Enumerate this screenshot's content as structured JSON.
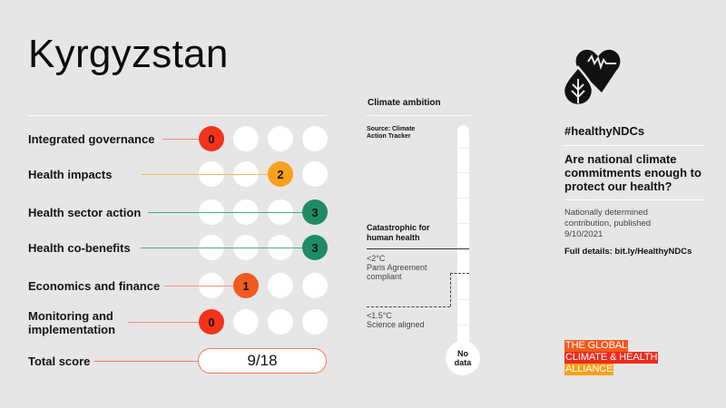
{
  "country": "Kyrgyzstan",
  "rows": [
    {
      "label": "Integrated governance",
      "score": "0",
      "position": 0,
      "color": "#f5321b",
      "line_color": "#f08a7e"
    },
    {
      "label": "Health impacts",
      "score": "2",
      "position": 2,
      "color": "#f9a11b",
      "line_color": "#f6b75c"
    },
    {
      "label": "Health sector action",
      "score": "3",
      "position": 3,
      "color": "#1e8c64",
      "line_color": "#4aa982"
    },
    {
      "label": "Health co-benefits",
      "score": "3",
      "position": 3,
      "color": "#1e8c64",
      "line_color": "#4aa982"
    },
    {
      "label": "Economics and finance",
      "score": "1",
      "position": 1,
      "color": "#f25a1e",
      "line_color": "#f3957a"
    },
    {
      "label_line1": "Monitoring and",
      "label_line2": "implementation",
      "score": "0",
      "position": 0,
      "color": "#f5321b",
      "line_color": "#f08a7e"
    }
  ],
  "total": {
    "label": "Total score",
    "value": "9/18",
    "line_color": "#f07b57"
  },
  "climate_ambition": {
    "title": "Climate ambition",
    "source_line1": "Source: Climate",
    "source_line2": "Action Tracker",
    "catastrophic_line1": "Catastrophic for",
    "catastrophic_line2": "human health",
    "paris_line1": "<2°C",
    "paris_line2": "Paris Agreement",
    "paris_line3": "compliant",
    "science_line1": "<1.5°C",
    "science_line2": "Science aligned",
    "bulb_line1": "No",
    "bulb_line2": "data"
  },
  "right": {
    "icon": "heart-pulse-leaf-icon",
    "hashtag": "#healthyNDCs",
    "question": "Are national climate commitments enough to protect our health?",
    "ndc_line1": "Nationally determined",
    "ndc_line2": "contribution, published",
    "ndc_date": "9/10/2021",
    "full_details": "Full details: bit.ly/HealthyNDCs"
  },
  "alliance": {
    "line1": "THE GLOBAL",
    "line2": "CLIMATE & HEALTH",
    "line3": "ALLIANCE",
    "colors": [
      "#f25a1e",
      "#ef2a1b",
      "#f9a11b"
    ]
  }
}
